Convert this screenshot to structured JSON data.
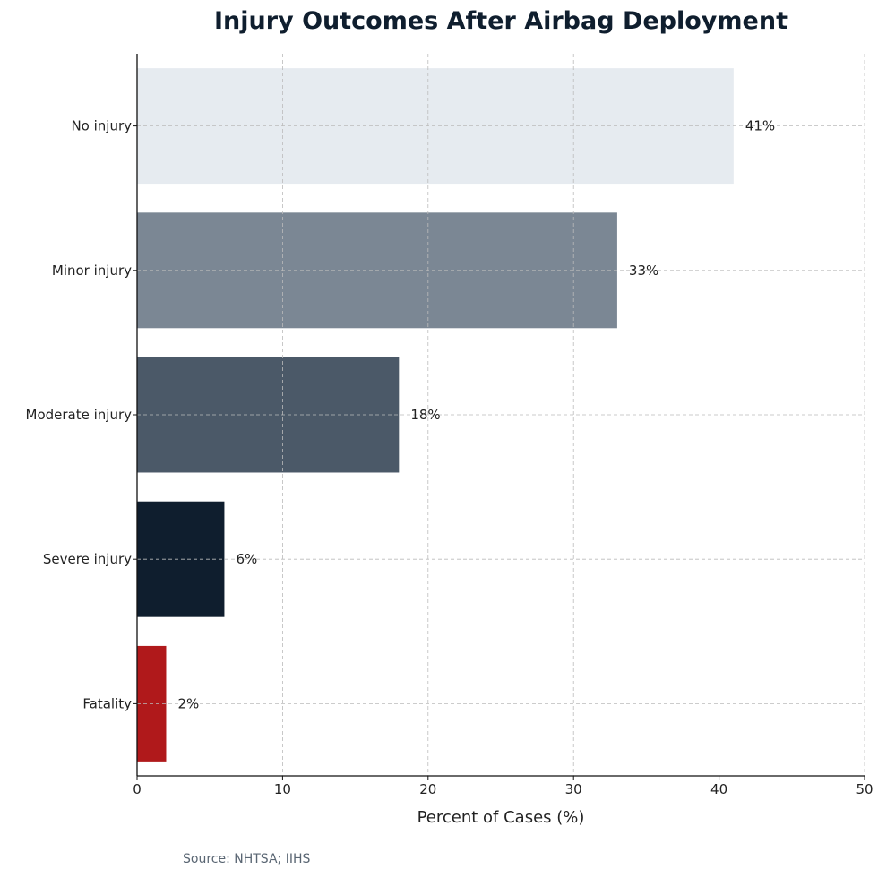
{
  "chart_data": {
    "type": "bar",
    "orientation": "horizontal",
    "title": "Injury Outcomes After Airbag Deployment",
    "xlabel": "Percent of Cases (%)",
    "ylabel": "",
    "categories": [
      "No injury",
      "Minor injury",
      "Moderate injury",
      "Severe injury",
      "Fatality"
    ],
    "values": [
      41,
      33,
      18,
      6,
      2
    ],
    "data_labels": [
      "41%",
      "33%",
      "18%",
      "6%",
      "2%"
    ],
    "colors": [
      "#e6ebf0",
      "#7b8794",
      "#4b5968",
      "#0f1e2e",
      "#b0191b"
    ],
    "xlim": [
      0,
      50
    ],
    "xticks": [
      0,
      10,
      20,
      30,
      40,
      50
    ],
    "grid": true,
    "source": "Source: NHTSA; IIHS"
  }
}
